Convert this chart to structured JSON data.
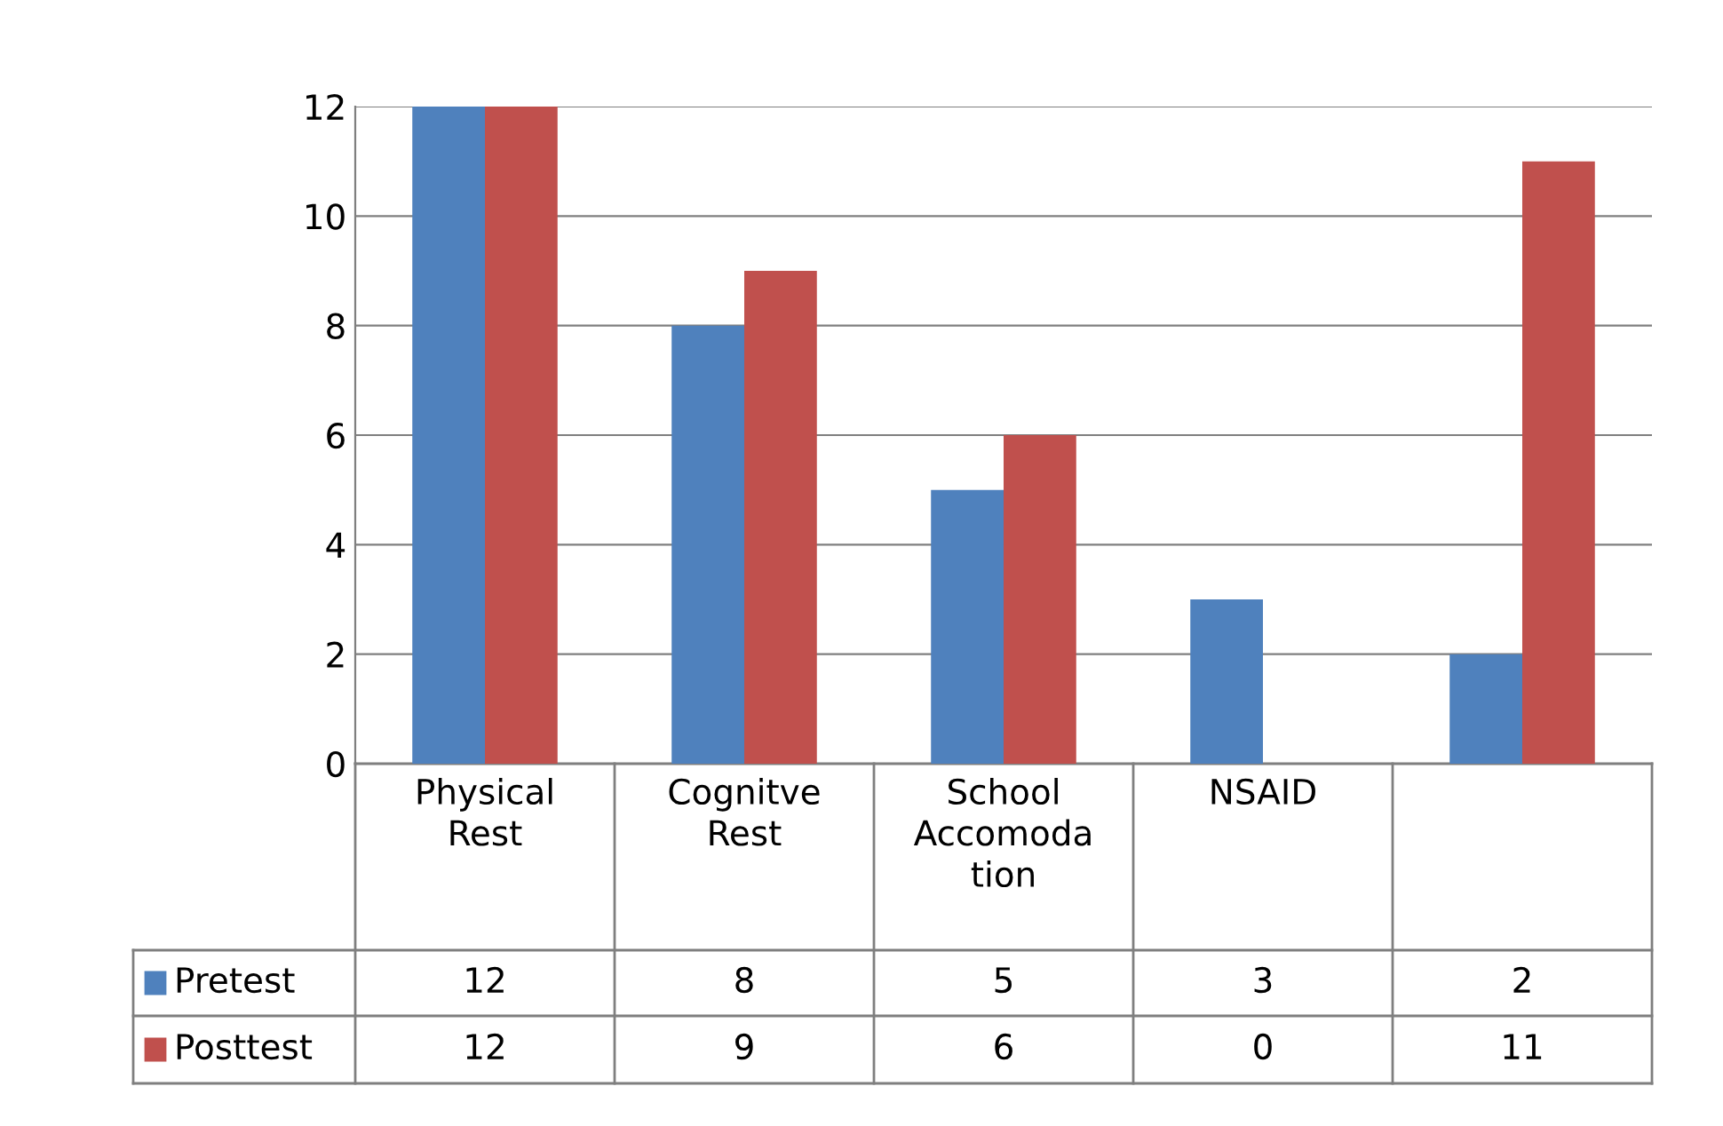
{
  "chart_data": {
    "type": "bar",
    "categories": [
      "Physical\nRest",
      "Cognitve\nRest",
      "School\nAccomoda\ntion",
      "NSAID",
      null
    ],
    "series": [
      {
        "name": "Pretest",
        "color": "#4f81bd",
        "values": [
          12,
          8,
          5,
          3,
          2
        ]
      },
      {
        "name": "Posttest",
        "color": "#c0504d",
        "values": [
          12,
          9,
          6,
          0,
          11
        ]
      }
    ],
    "ylim": [
      0,
      12
    ],
    "yticks": [
      0,
      2,
      4,
      6,
      8,
      10,
      12
    ],
    "grid": "y",
    "legend": "bottom",
    "data_labels": true
  }
}
